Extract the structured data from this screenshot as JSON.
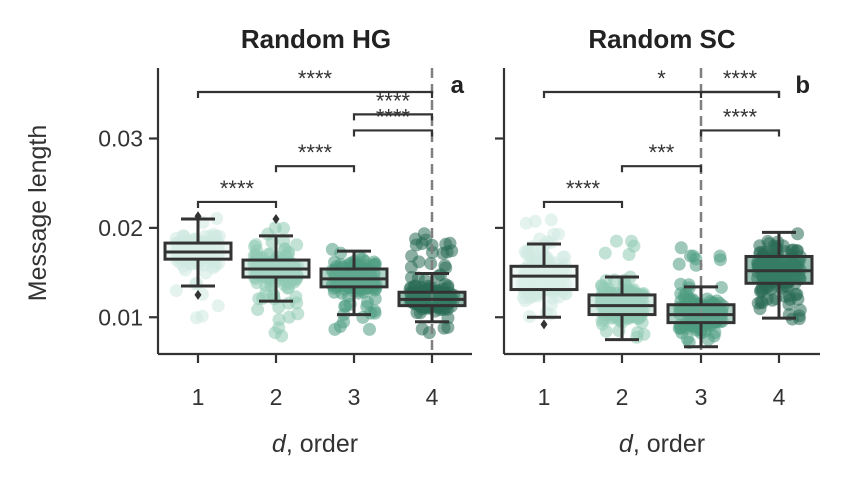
{
  "figure": {
    "ylabel": "Message length",
    "xlabel_italic": "d",
    "xlabel_rest": ", order"
  },
  "chart_data": [
    {
      "type": "box",
      "title": "Random HG",
      "panel_letter": "a",
      "xlabel": "d, order",
      "ylabel": "Message length",
      "categories": [
        "1",
        "2",
        "3",
        "4"
      ],
      "ylim": [
        0.006,
        0.038
      ],
      "yticks": [
        0.01,
        0.02,
        0.03
      ],
      "ytick_labels": [
        "0.01",
        "0.02",
        "0.03"
      ],
      "boxes": [
        {
          "x": "1",
          "whislo": 0.0135,
          "q1": 0.0165,
          "med": 0.0173,
          "q3": 0.0183,
          "whishi": 0.021,
          "fliers": [
            0.0213,
            0.0125
          ],
          "jitter_min": 0.0085,
          "jitter_max": 0.0215
        },
        {
          "x": "2",
          "whislo": 0.0118,
          "q1": 0.0145,
          "med": 0.0154,
          "q3": 0.0164,
          "whishi": 0.0191,
          "fliers": [
            0.021
          ],
          "jitter_min": 0.0078,
          "jitter_max": 0.021
        },
        {
          "x": "3",
          "whislo": 0.0103,
          "q1": 0.0134,
          "med": 0.0143,
          "q3": 0.0154,
          "whishi": 0.0174,
          "fliers": [],
          "jitter_min": 0.0078,
          "jitter_max": 0.0177
        },
        {
          "x": "4",
          "whislo": 0.0095,
          "q1": 0.0113,
          "med": 0.012,
          "q3": 0.0128,
          "whishi": 0.0149,
          "fliers": [],
          "jitter_min": 0.0082,
          "jitter_max": 0.0197
        }
      ],
      "vline_x": "4",
      "significance": [
        {
          "from": "1",
          "to": "4",
          "y": 0.0352,
          "label": "****"
        },
        {
          "from": "1",
          "to": "2",
          "y": 0.0229,
          "label": "****"
        },
        {
          "from": "2",
          "to": "3",
          "y": 0.0269,
          "label": "****"
        },
        {
          "from": "3",
          "to": "4",
          "y": 0.0309,
          "label": "****"
        },
        {
          "from": "4",
          "to": "4",
          "y": 0.0327,
          "label": "****"
        }
      ]
    },
    {
      "type": "box",
      "title": "Random SC",
      "panel_letter": "b",
      "xlabel": "d, order",
      "categories": [
        "1",
        "2",
        "3",
        "4"
      ],
      "ylim": [
        0.006,
        0.038
      ],
      "yticks": [
        0.01,
        0.02,
        0.03
      ],
      "ytick_labels": [
        "",
        "",
        ""
      ],
      "boxes": [
        {
          "x": "1",
          "whislo": 0.01,
          "q1": 0.0131,
          "med": 0.0146,
          "q3": 0.0157,
          "whishi": 0.0182,
          "fliers": [
            0.0092
          ],
          "jitter_min": 0.0098,
          "jitter_max": 0.0215
        },
        {
          "x": "2",
          "whislo": 0.0075,
          "q1": 0.0103,
          "med": 0.0113,
          "q3": 0.0125,
          "whishi": 0.0145,
          "fliers": [],
          "jitter_min": 0.0077,
          "jitter_max": 0.019
        },
        {
          "x": "3",
          "whislo": 0.0067,
          "q1": 0.0094,
          "med": 0.0103,
          "q3": 0.0114,
          "whishi": 0.0134,
          "fliers": [],
          "jitter_min": 0.007,
          "jitter_max": 0.018
        },
        {
          "x": "4",
          "whislo": 0.0099,
          "q1": 0.0138,
          "med": 0.0152,
          "q3": 0.0168,
          "whishi": 0.0195,
          "fliers": [],
          "jitter_min": 0.0095,
          "jitter_max": 0.0195
        }
      ],
      "vline_x": "3",
      "significance": [
        {
          "from": "1",
          "to": "4",
          "y": 0.0352,
          "label": "*"
        },
        {
          "from": "1",
          "to": "2",
          "y": 0.0229,
          "label": "****"
        },
        {
          "from": "2",
          "to": "3",
          "y": 0.0269,
          "label": "***"
        },
        {
          "from": "3",
          "to": "4",
          "y": 0.0309,
          "label": "****"
        },
        {
          "from": "3",
          "to": "4",
          "y": 0.0352,
          "label": "****"
        }
      ]
    }
  ],
  "colors": {
    "points": [
      "#cfe9e1",
      "#8fcab5",
      "#4f9d82",
      "#2a6b55"
    ],
    "boxes": [
      "#e4f3ee",
      "#b6ddd0",
      "#6fb39b",
      "#3f8a72"
    ],
    "box_edge": "#333333",
    "vline": "#808080"
  }
}
